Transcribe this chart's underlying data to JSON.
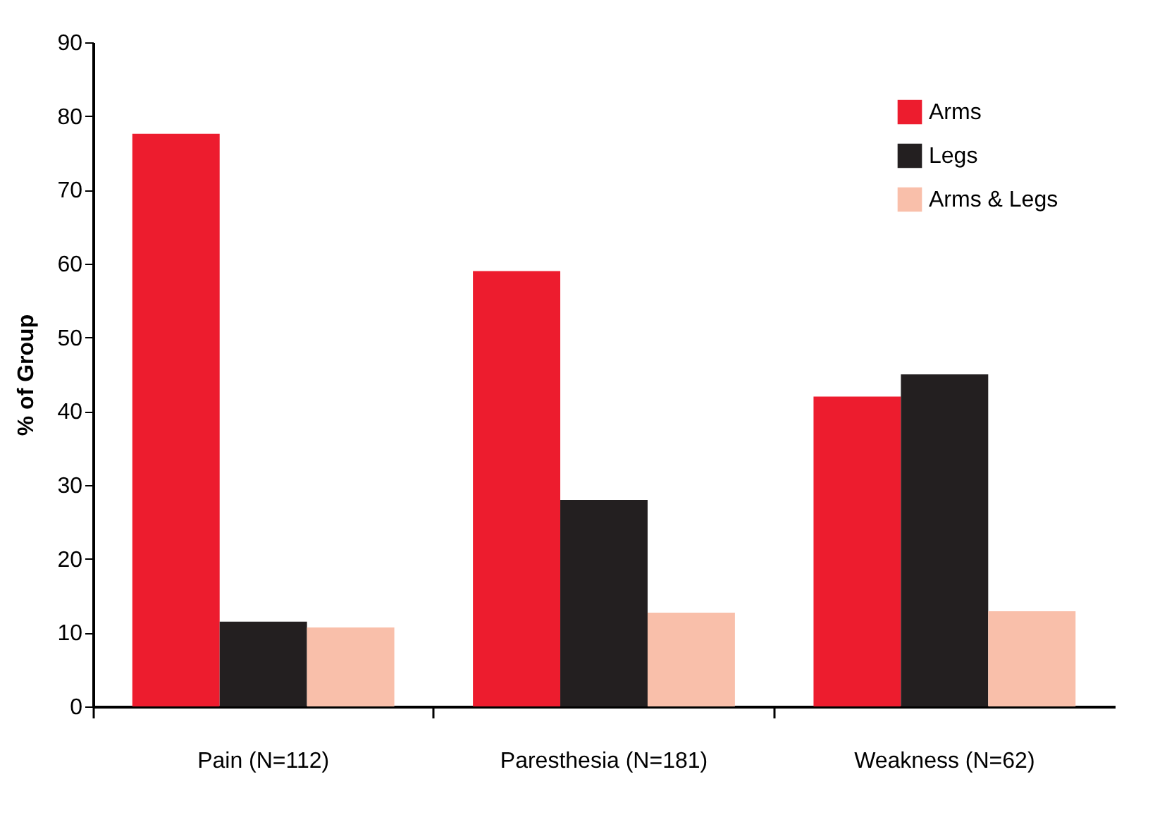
{
  "chart_data": {
    "type": "bar",
    "ylabel": "% of Group",
    "categories": [
      "Pain  (N=112)",
      "Paresthesia (N=181)",
      "Weakness  (N=62)"
    ],
    "series": [
      {
        "name": "Arms",
        "color": "#ed1c2e",
        "values": [
          77.6,
          59,
          42
        ]
      },
      {
        "name": "Legs",
        "color": "#231f20",
        "values": [
          11.5,
          28,
          45
        ]
      },
      {
        "name": "Arms & Legs",
        "color": "#f9bfaa",
        "values": [
          10.7,
          12.7,
          12.9
        ]
      }
    ],
    "ylim": [
      0,
      90
    ],
    "yticks": [
      0,
      10,
      20,
      30,
      40,
      50,
      60,
      70,
      80,
      90
    ],
    "grid": false,
    "legend": "top right"
  }
}
